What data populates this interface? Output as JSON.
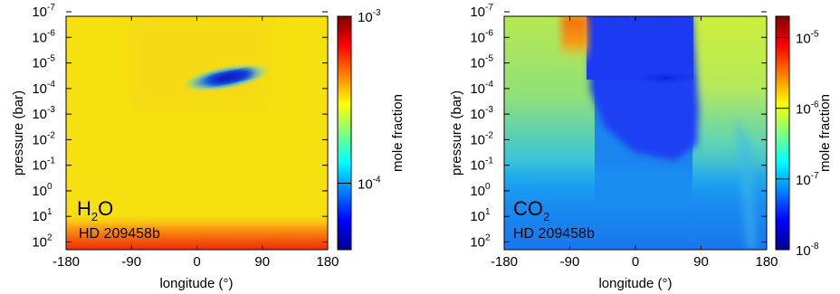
{
  "chart_data": [
    {
      "type": "heatmap",
      "species_main": "H",
      "species_sub": "2",
      "species_tail": "O",
      "planet": "HD 209458b",
      "xlabel": "longitude (°)",
      "ylabel": "pressure (bar)",
      "xlim": [
        -180,
        180
      ],
      "x_ticks": [
        "-180",
        "-90",
        "0",
        "90",
        "180"
      ],
      "y_scale": "log-inverted",
      "ylim_bar": [
        200.0,
        1.5e-07
      ],
      "y_ticks": [
        {
          "base": "10",
          "exp": "-7"
        },
        {
          "base": "10",
          "exp": "-6"
        },
        {
          "base": "10",
          "exp": "-5"
        },
        {
          "base": "10",
          "exp": "-4"
        },
        {
          "base": "10",
          "exp": "-3"
        },
        {
          "base": "10",
          "exp": "-2"
        },
        {
          "base": "10",
          "exp": "-1"
        },
        {
          "base": "10",
          "exp": "0"
        },
        {
          "base": "10",
          "exp": "1"
        },
        {
          "base": "10",
          "exp": "2"
        }
      ],
      "colorbar_label": "mole fraction",
      "colorbar_scale": "log",
      "colorbar_range": [
        4e-05,
        0.001
      ],
      "colorbar_ticks": [
        {
          "base": "10",
          "exp": "-3"
        },
        {
          "base": "10",
          "exp": "-4"
        }
      ],
      "colormap": "jet",
      "background_color": "#f7e010",
      "features": [
        {
          "kind": "depleted-band",
          "lon_center": 45,
          "pressure_bar": 1e-05,
          "value": 5e-05
        },
        {
          "kind": "enriched-deep",
          "pressure_bar_min": 30,
          "value": 0.001
        }
      ]
    },
    {
      "type": "heatmap",
      "species_main": "CO",
      "species_sub": "2",
      "species_tail": "",
      "planet": "HD 209458b",
      "xlabel": "longitude (°)",
      "ylabel": "pressure (bar)",
      "xlim": [
        -180,
        180
      ],
      "x_ticks": [
        "-180",
        "-90",
        "0",
        "90",
        "180"
      ],
      "y_scale": "log-inverted",
      "ylim_bar": [
        200.0,
        1.5e-07
      ],
      "y_ticks": [
        {
          "base": "10",
          "exp": "-7"
        },
        {
          "base": "10",
          "exp": "-6"
        },
        {
          "base": "10",
          "exp": "-5"
        },
        {
          "base": "10",
          "exp": "-4"
        },
        {
          "base": "10",
          "exp": "-3"
        },
        {
          "base": "10",
          "exp": "-2"
        },
        {
          "base": "10",
          "exp": "-1"
        },
        {
          "base": "10",
          "exp": "0"
        },
        {
          "base": "10",
          "exp": "1"
        },
        {
          "base": "10",
          "exp": "2"
        }
      ],
      "colorbar_label": "mole fraction",
      "colorbar_scale": "log",
      "colorbar_range": [
        1e-08,
        2e-05
      ],
      "colorbar_ticks": [
        {
          "base": "10",
          "exp": "-5"
        },
        {
          "base": "10",
          "exp": "-6"
        },
        {
          "base": "10",
          "exp": "-7"
        },
        {
          "base": "10",
          "exp": "-8"
        }
      ],
      "colormap": "jet",
      "features": [
        {
          "kind": "enriched-cap",
          "lon_range": [
            -100,
            -70
          ],
          "pressure_bar": 1e-06,
          "value": 1e-05
        },
        {
          "kind": "depleted-dayside",
          "lon_range": [
            -60,
            90
          ],
          "value": 1e-07
        }
      ]
    }
  ]
}
